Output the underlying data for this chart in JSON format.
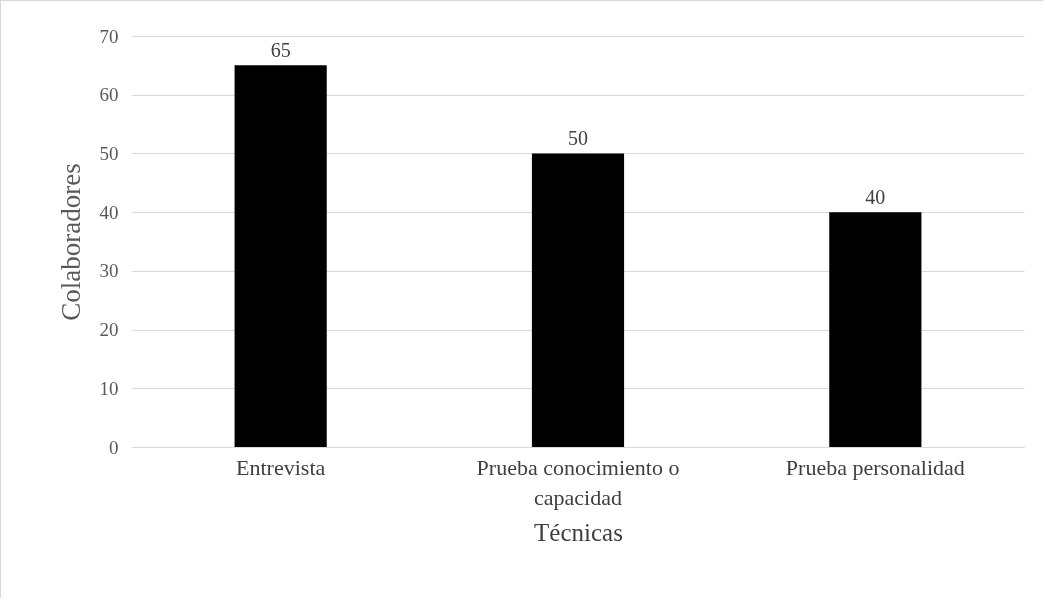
{
  "chart_data": {
    "type": "bar",
    "xlabel": "Técnicas",
    "ylabel": "Colaboradores",
    "categories": [
      "Entrevista",
      "Prueba conocimiento o capacidad",
      "Prueba  personalidad"
    ],
    "values": [
      65,
      50,
      40
    ],
    "color": "#000000",
    "ylim": [
      0,
      70
    ],
    "yticks": [
      0,
      10,
      20,
      30,
      40,
      50,
      60,
      70
    ],
    "grid": "y",
    "data_labels": true
  }
}
